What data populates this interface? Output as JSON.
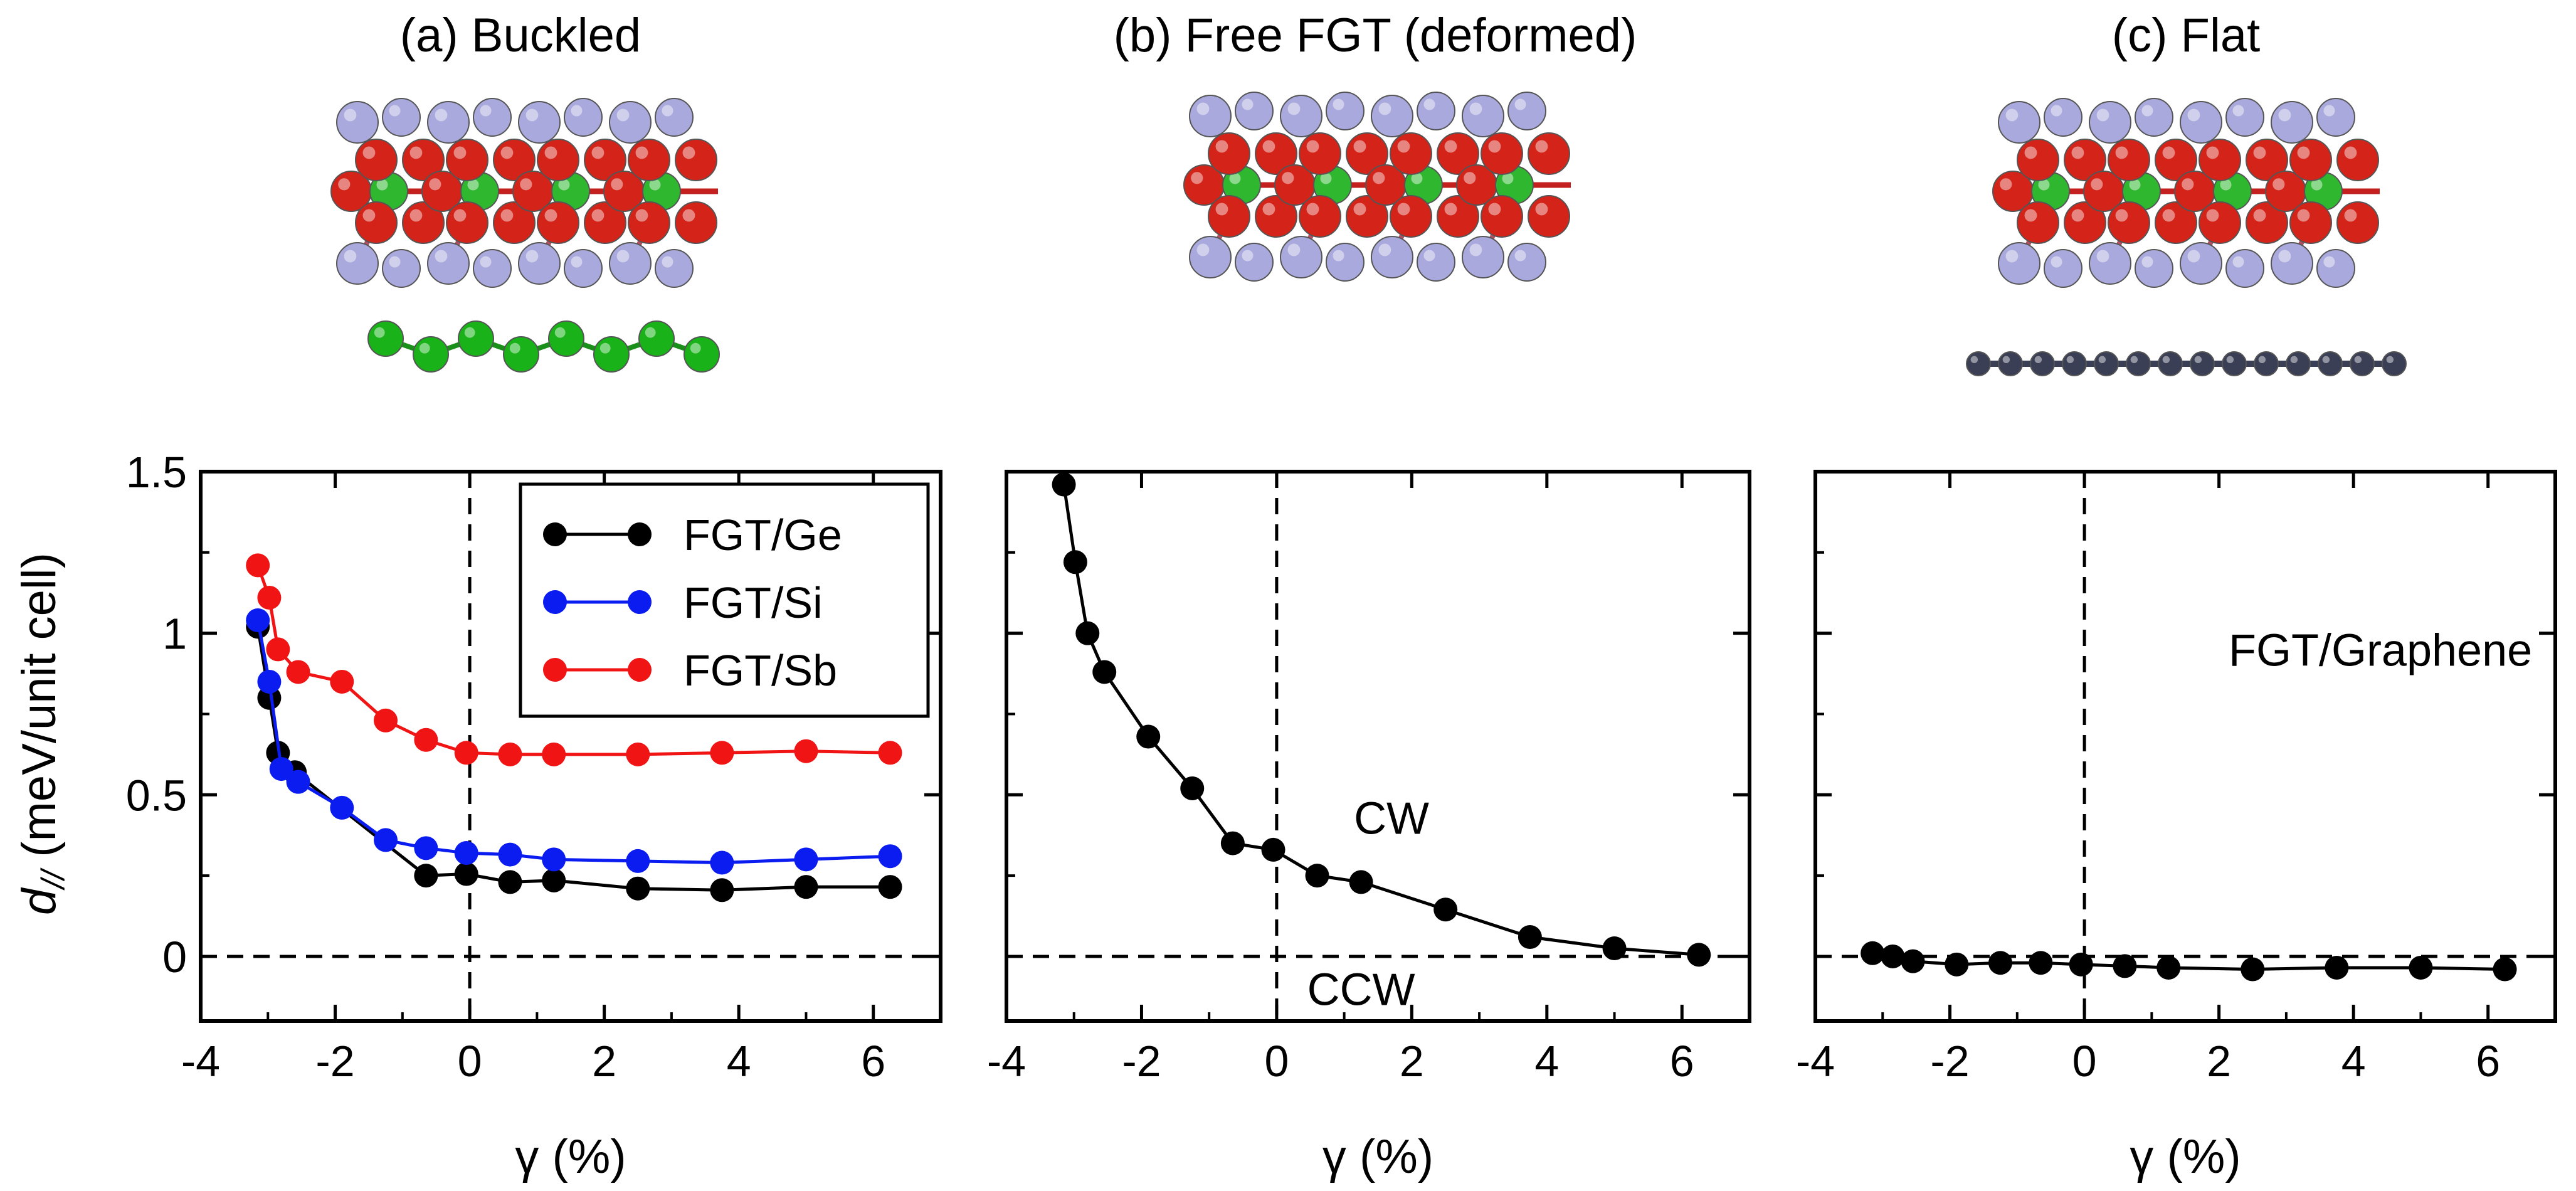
{
  "panels": [
    {
      "title": "(a) Buckled",
      "structure": "FGT on buckled substrate (green atoms)",
      "substrate_color": "#19b319",
      "substrate_type": "buckled"
    },
    {
      "title": "(b) Free FGT (deformed)",
      "structure": "freestanding deformed FGT",
      "substrate_color": "",
      "substrate_type": "none"
    },
    {
      "title": "(c) Flat",
      "structure": "FGT on flat graphene (dark atoms)",
      "substrate_color": "#3a3f55",
      "substrate_type": "flat"
    }
  ],
  "colors": {
    "fe": "#d42318",
    "te": "#a9a9dd",
    "ge_inlayer": "#2fb82f",
    "black": "#000000",
    "blue": "#0a1cf0",
    "red": "#f01414"
  },
  "chart_data": [
    {
      "type": "line",
      "panel": "a",
      "title": "(a) Buckled",
      "xlabel": "γ (%)",
      "ylabel": "d// (meV/unit cell)",
      "ylabel_main": "d",
      "ylabel_sub": "//",
      "ylabel_rest": " (meV/unit cell)",
      "xlim": [
        -4,
        7
      ],
      "ylim": [
        -0.2,
        1.5
      ],
      "xticks": [
        -4,
        -2,
        0,
        2,
        4,
        6
      ],
      "yticks": [
        0,
        0.5,
        1,
        1.5
      ],
      "ytick_labels": [
        "0",
        "0.5",
        "1",
        "1.5"
      ],
      "legend_position": "top-right",
      "series": [
        {
          "name": "FGT/Ge",
          "color": "#000000",
          "x": [
            -3.15,
            -2.98,
            -2.85,
            -2.6,
            -0.65,
            -0.05,
            0.6,
            1.25,
            2.5,
            3.75,
            5.0,
            6.25
          ],
          "y": [
            1.02,
            0.8,
            0.63,
            0.57,
            0.25,
            0.255,
            0.23,
            0.235,
            0.21,
            0.205,
            0.215,
            0.215
          ]
        },
        {
          "name": "FGT/Si",
          "color": "#0a1cf0",
          "x": [
            -3.15,
            -2.98,
            -2.8,
            -2.55,
            -1.9,
            -1.25,
            -0.65,
            -0.05,
            0.6,
            1.25,
            2.5,
            3.75,
            5.0,
            6.25
          ],
          "y": [
            1.04,
            0.85,
            0.58,
            0.54,
            0.46,
            0.36,
            0.335,
            0.32,
            0.315,
            0.3,
            0.295,
            0.29,
            0.3,
            0.31
          ]
        },
        {
          "name": "FGT/Sb",
          "color": "#f01414",
          "x": [
            -3.15,
            -2.98,
            -2.85,
            -2.55,
            -1.9,
            -1.25,
            -0.65,
            -0.05,
            0.6,
            1.25,
            2.5,
            3.75,
            5.0,
            6.25
          ],
          "y": [
            1.21,
            1.11,
            0.95,
            0.88,
            0.85,
            0.73,
            0.67,
            0.63,
            0.625,
            0.625,
            0.625,
            0.63,
            0.635,
            0.63
          ]
        }
      ],
      "annotations": []
    },
    {
      "type": "line",
      "panel": "b",
      "title": "(b) Free FGT (deformed)",
      "xlabel": "γ (%)",
      "ylabel": "",
      "xlim": [
        -4,
        7
      ],
      "ylim": [
        -0.2,
        1.5
      ],
      "xticks": [
        -4,
        -2,
        0,
        2,
        4,
        6
      ],
      "yticks": [
        0,
        0.5,
        1,
        1.5
      ],
      "series": [
        {
          "name": "Free FGT",
          "color": "#000000",
          "x": [
            -3.15,
            -2.98,
            -2.8,
            -2.55,
            -1.9,
            -1.25,
            -0.65,
            -0.05,
            0.6,
            1.25,
            2.5,
            3.75,
            5.0,
            6.25
          ],
          "y": [
            1.46,
            1.22,
            1.0,
            0.88,
            0.68,
            0.52,
            0.35,
            0.33,
            0.25,
            0.23,
            0.145,
            0.06,
            0.025,
            0.005
          ]
        }
      ],
      "annotations": [
        {
          "text": "CW",
          "x": 1.7,
          "y": 0.43
        },
        {
          "text": "CCW",
          "x": 1.25,
          "y": -0.1
        }
      ]
    },
    {
      "type": "line",
      "panel": "c",
      "title": "(c) Flat",
      "xlabel": "γ (%)",
      "ylabel": "",
      "xlim": [
        -4,
        7
      ],
      "ylim": [
        -0.2,
        1.5
      ],
      "xticks": [
        -4,
        -2,
        0,
        2,
        4,
        6
      ],
      "yticks": [
        0,
        0.5,
        1,
        1.5
      ],
      "series": [
        {
          "name": "FGT/Graphene",
          "color": "#000000",
          "x": [
            -3.15,
            -2.85,
            -2.55,
            -1.9,
            -1.25,
            -0.65,
            -0.05,
            0.6,
            1.25,
            2.5,
            3.75,
            5.0,
            6.25
          ],
          "y": [
            0.01,
            0.0,
            -0.015,
            -0.025,
            -0.02,
            -0.02,
            -0.025,
            -0.03,
            -0.035,
            -0.04,
            -0.035,
            -0.035,
            -0.04
          ]
        }
      ],
      "annotations": [
        {
          "text": "FGT/Graphene",
          "x": 4.4,
          "y": 0.95
        }
      ]
    }
  ]
}
